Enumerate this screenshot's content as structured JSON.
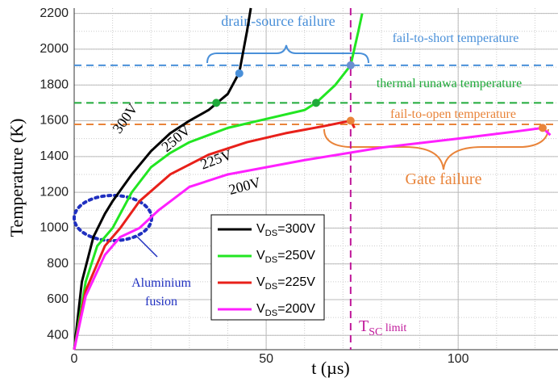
{
  "chart_data": {
    "type": "line",
    "x_label": "t (µs)",
    "y_label": "Temperature (K)",
    "xlim": [
      0,
      126
    ],
    "ylim": [
      320,
      2230
    ],
    "xticks": [
      0,
      50,
      100
    ],
    "yticks": [
      400,
      600,
      800,
      1000,
      1200,
      1400,
      1600,
      1800,
      2000,
      2200
    ],
    "grid": true,
    "series": [
      {
        "name": "VDS=300V",
        "label": "300V",
        "color": "#000000",
        "x": [
          0,
          2,
          5,
          8,
          10,
          15,
          20,
          25,
          30,
          35,
          40,
          43,
          45,
          46
        ],
        "values": [
          320,
          700,
          950,
          1080,
          1150,
          1300,
          1430,
          1530,
          1600,
          1660,
          1750,
          1870,
          2100,
          2230
        ]
      },
      {
        "name": "VDS=250V",
        "label": "250V",
        "color": "#22e622",
        "x": [
          0,
          3,
          6,
          10,
          15,
          20,
          25,
          30,
          40,
          50,
          60,
          63,
          68,
          72,
          74,
          75
        ],
        "values": [
          320,
          700,
          900,
          1000,
          1200,
          1340,
          1420,
          1480,
          1560,
          1610,
          1660,
          1700,
          1800,
          1910,
          2100,
          2200
        ]
      },
      {
        "name": "VDS=225V",
        "label": "225V",
        "color": "#e8201a",
        "x": [
          0,
          3,
          8,
          12,
          17,
          25,
          35,
          45,
          55,
          65,
          72,
          73
        ],
        "values": [
          320,
          650,
          900,
          1000,
          1150,
          1300,
          1410,
          1480,
          1530,
          1570,
          1600,
          1560
        ]
      },
      {
        "name": "VDS=200V",
        "label": "200V",
        "color": "#ff20ff",
        "x": [
          0,
          3,
          8,
          12,
          17,
          22,
          30,
          40,
          60,
          80,
          100,
          115,
          122,
          124
        ],
        "values": [
          320,
          620,
          850,
          950,
          1000,
          1100,
          1230,
          1300,
          1380,
          1450,
          1500,
          1540,
          1560,
          1520
        ]
      }
    ],
    "reference_lines": [
      {
        "y": 1910,
        "color": "#4a90d9",
        "label": "fail-to-short temperature"
      },
      {
        "y": 1700,
        "color": "#1faa3a",
        "label": "thermal runawa temperature"
      },
      {
        "y": 1580,
        "color": "#e9843a",
        "label": "fail-to-open temperature"
      }
    ],
    "vline": {
      "x": 72,
      "color": "#c0189a",
      "label": "TSC limit"
    },
    "points": [
      {
        "x": 43,
        "y": 1865,
        "color": "#4a90d9"
      },
      {
        "x": 72,
        "y": 1910,
        "color": "#6a8fd0"
      },
      {
        "x": 37,
        "y": 1700,
        "color": "#1faa3a"
      },
      {
        "x": 63,
        "y": 1700,
        "color": "#1faa3a"
      },
      {
        "x": 72,
        "y": 1600,
        "color": "#e9843a"
      },
      {
        "x": 122,
        "y": 1560,
        "color": "#e9843a"
      }
    ],
    "annotations": [
      "drain-source  failure",
      "Gate failure",
      "Aluminium",
      "fusion"
    ]
  }
}
